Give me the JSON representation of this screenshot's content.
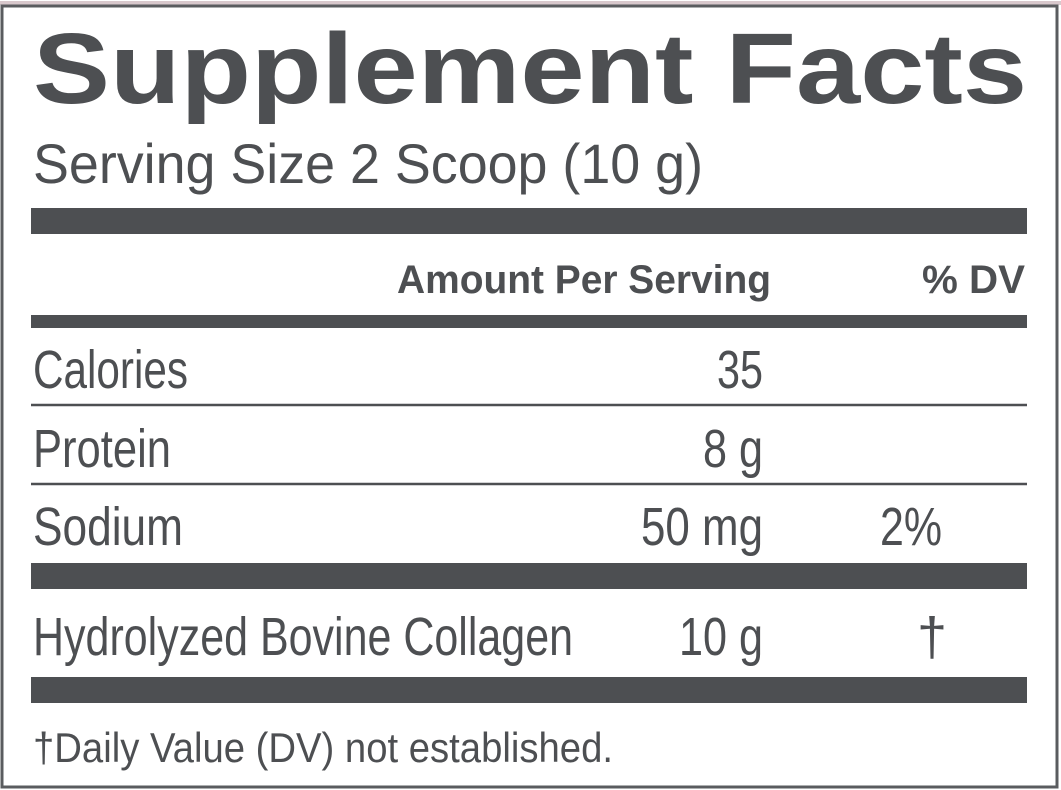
{
  "header": {
    "title": "Supplement Facts",
    "serving_size": "Serving Size 2 Scoop (10 g)"
  },
  "table": {
    "columns": [
      "Amount Per Serving",
      "% DV"
    ],
    "rows": [
      {
        "name": "Calories",
        "amount": "35"
      },
      {
        "name": "Protein",
        "amount": "8 g"
      },
      {
        "name": "Sodium",
        "amount": "50 mg",
        "dv": "2%"
      },
      {
        "name": "Hydrolyzed Bovine Collagen",
        "amount": "10 g",
        "dv": "†"
      }
    ]
  },
  "footnote": "†Daily Value (DV) not established."
}
